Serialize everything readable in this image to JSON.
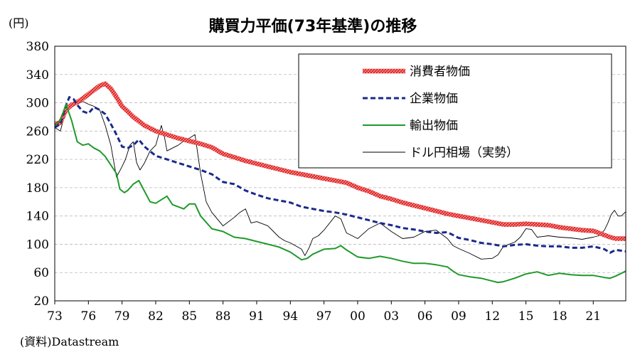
{
  "chart_data": {
    "type": "line",
    "title": "購買力平価(73年基準)の推移",
    "unit_label": "(円)",
    "source": "(資料)Datastream",
    "ylim": [
      20,
      380
    ],
    "yticks": [
      380,
      340,
      300,
      260,
      220,
      180,
      140,
      100,
      60,
      20
    ],
    "xlim": [
      1973,
      2023.9
    ],
    "xticks": [
      {
        "year": 1973,
        "label": "73"
      },
      {
        "year": 1976,
        "label": "76"
      },
      {
        "year": 1979,
        "label": "79"
      },
      {
        "year": 1982,
        "label": "82"
      },
      {
        "year": 1985,
        "label": "85"
      },
      {
        "year": 1988,
        "label": "88"
      },
      {
        "year": 1991,
        "label": "91"
      },
      {
        "year": 1994,
        "label": "94"
      },
      {
        "year": 1997,
        "label": "97"
      },
      {
        "year": 2000,
        "label": "00"
      },
      {
        "year": 2003,
        "label": "03"
      },
      {
        "year": 2006,
        "label": "06"
      },
      {
        "year": 2009,
        "label": "09"
      },
      {
        "year": 2012,
        "label": "12"
      },
      {
        "year": 2015,
        "label": "15"
      },
      {
        "year": 2018,
        "label": "18"
      },
      {
        "year": 2021,
        "label": "21"
      }
    ],
    "grid": "horizontal-dashed",
    "legend_position": "top-right",
    "series": [
      {
        "name": "消費者物価",
        "color": "#e83030",
        "style": "thick-hatched",
        "x": [
          1973.0,
          1973.5,
          1974.0,
          1974.5,
          1975.0,
          1975.5,
          1976.0,
          1976.5,
          1977.0,
          1977.5,
          1978.0,
          1978.5,
          1979.0,
          1979.5,
          1980.0,
          1981.0,
          1982.0,
          1983.0,
          1984.0,
          1985.0,
          1986.0,
          1987.0,
          1988.0,
          1989.0,
          1990.0,
          1991.0,
          1992.0,
          1993.0,
          1994.0,
          1995.0,
          1996.0,
          1997.0,
          1998.0,
          1999.0,
          2000.0,
          2001.0,
          2002.0,
          2003.0,
          2004.0,
          2005.0,
          2006.0,
          2007.0,
          2008.0,
          2009.0,
          2010.0,
          2011.0,
          2012.0,
          2013.0,
          2014.0,
          2015.0,
          2016.0,
          2017.0,
          2018.0,
          2019.0,
          2020.0,
          2021.0,
          2022.0,
          2022.5,
          2023.0,
          2023.9
        ],
        "y": [
          270,
          272,
          290,
          297,
          301,
          306,
          312,
          318,
          324,
          327,
          320,
          308,
          295,
          288,
          280,
          268,
          260,
          255,
          250,
          246,
          242,
          237,
          228,
          223,
          218,
          214,
          210,
          206,
          202,
          199,
          196,
          193,
          190,
          187,
          180,
          175,
          168,
          164,
          159,
          155,
          151,
          147,
          143,
          140,
          137,
          134,
          131,
          128,
          128,
          129,
          128,
          127,
          124,
          122,
          120,
          119,
          113,
          110,
          108,
          108
        ]
      },
      {
        "name": "企業物価",
        "color": "#1a2a8c",
        "style": "dashed",
        "x": [
          1973.0,
          1973.5,
          1974.0,
          1974.3,
          1974.7,
          1975.0,
          1975.5,
          1976.0,
          1976.5,
          1977.0,
          1977.5,
          1978.0,
          1978.5,
          1979.0,
          1979.5,
          1980.0,
          1980.5,
          1981.0,
          1982.0,
          1983.0,
          1984.0,
          1985.0,
          1986.0,
          1987.0,
          1988.0,
          1989.0,
          1990.0,
          1991.0,
          1992.0,
          1993.0,
          1994.0,
          1995.0,
          1996.0,
          1997.0,
          1998.0,
          1999.0,
          2000.0,
          2001.0,
          2002.0,
          2003.0,
          2004.0,
          2005.0,
          2006.0,
          2007.0,
          2008.0,
          2009.0,
          2010.0,
          2011.0,
          2012.0,
          2013.0,
          2014.0,
          2015.0,
          2016.0,
          2017.0,
          2018.0,
          2019.0,
          2020.0,
          2021.0,
          2022.0,
          2022.5,
          2023.0,
          2023.9
        ],
        "y": [
          265,
          270,
          296,
          308,
          305,
          297,
          288,
          285,
          294,
          290,
          284,
          270,
          255,
          238,
          236,
          240,
          248,
          238,
          225,
          220,
          215,
          210,
          205,
          199,
          188,
          185,
          176,
          170,
          165,
          162,
          159,
          153,
          150,
          147,
          145,
          142,
          138,
          134,
          130,
          127,
          123,
          121,
          118,
          116,
          117,
          109,
          106,
          102,
          100,
          97,
          99,
          100,
          98,
          97,
          97,
          95,
          95,
          97,
          93,
          88,
          92,
          90
        ]
      },
      {
        "name": "輸出物価",
        "color": "#1f9a2a",
        "style": "solid",
        "x": [
          1973.0,
          1973.5,
          1974.0,
          1974.5,
          1975.0,
          1975.5,
          1976.0,
          1976.5,
          1977.0,
          1977.5,
          1978.0,
          1978.5,
          1978.8,
          1979.2,
          1979.5,
          1980.0,
          1980.5,
          1981.0,
          1981.5,
          1982.0,
          1982.5,
          1983.0,
          1983.5,
          1984.0,
          1984.5,
          1985.0,
          1985.5,
          1986.0,
          1987.0,
          1988.0,
          1989.0,
          1990.0,
          1991.0,
          1992.0,
          1993.0,
          1994.0,
          1995.0,
          1995.5,
          1996.0,
          1997.0,
          1998.0,
          1998.5,
          1999.0,
          2000.0,
          2001.0,
          2002.0,
          2003.0,
          2004.0,
          2005.0,
          2006.0,
          2007.0,
          2008.0,
          2008.5,
          2009.0,
          2010.0,
          2011.0,
          2012.0,
          2012.5,
          2013.0,
          2014.0,
          2015.0,
          2016.0,
          2017.0,
          2018.0,
          2019.0,
          2020.0,
          2021.0,
          2022.0,
          2022.5,
          2023.0,
          2023.9
        ],
        "y": [
          268,
          275,
          298,
          275,
          245,
          240,
          242,
          236,
          232,
          224,
          212,
          200,
          178,
          173,
          176,
          185,
          190,
          175,
          160,
          158,
          163,
          168,
          156,
          153,
          150,
          157,
          157,
          140,
          122,
          118,
          110,
          108,
          104,
          100,
          96,
          89,
          78,
          80,
          86,
          93,
          94,
          98,
          92,
          82,
          80,
          83,
          80,
          76,
          73,
          73,
          71,
          68,
          62,
          57,
          54,
          52,
          48,
          46,
          47,
          52,
          58,
          61,
          56,
          59,
          57,
          56,
          56,
          53,
          52,
          55,
          62
        ]
      },
      {
        "name": "ドル円相場（実勢）",
        "color": "#000000",
        "style": "thin",
        "x": [
          1973.0,
          1973.5,
          1974.0,
          1974.5,
          1975.0,
          1975.5,
          1976.0,
          1976.5,
          1977.0,
          1977.5,
          1978.0,
          1978.5,
          1979.0,
          1979.3,
          1979.7,
          1980.0,
          1980.3,
          1980.6,
          1981.0,
          1981.5,
          1982.0,
          1982.5,
          1982.8,
          1983.0,
          1983.5,
          1984.0,
          1984.5,
          1985.0,
          1985.5,
          1986.0,
          1986.5,
          1987.0,
          1988.0,
          1989.0,
          1989.5,
          1990.0,
          1990.5,
          1991.0,
          1992.0,
          1993.0,
          1993.5,
          1994.0,
          1995.0,
          1995.3,
          1995.7,
          1996.0,
          1996.5,
          1997.0,
          1998.0,
          1998.5,
          1999.0,
          2000.0,
          2001.0,
          2002.0,
          2003.0,
          2004.0,
          2005.0,
          2006.0,
          2007.0,
          2008.0,
          2008.5,
          2009.0,
          2010.0,
          2011.0,
          2012.0,
          2012.5,
          2013.0,
          2013.5,
          2014.0,
          2014.5,
          2015.0,
          2015.5,
          2016.0,
          2017.0,
          2018.0,
          2019.0,
          2020.0,
          2021.0,
          2021.5,
          2022.0,
          2022.3,
          2022.6,
          2022.9,
          2023.2,
          2023.5,
          2023.9
        ],
        "y": [
          265,
          260,
          290,
          300,
          298,
          302,
          298,
          295,
          290,
          268,
          240,
          195,
          210,
          220,
          240,
          245,
          215,
          205,
          215,
          232,
          240,
          268,
          250,
          232,
          236,
          240,
          246,
          250,
          255,
          200,
          160,
          145,
          126,
          138,
          145,
          150,
          130,
          132,
          126,
          110,
          105,
          102,
          93,
          84,
          96,
          108,
          112,
          120,
          140,
          136,
          116,
          108,
          122,
          130,
          118,
          108,
          110,
          118,
          120,
          108,
          98,
          94,
          87,
          79,
          80,
          85,
          97,
          100,
          103,
          110,
          122,
          121,
          110,
          112,
          110,
          109,
          107,
          110,
          112,
          120,
          130,
          142,
          148,
          140,
          140,
          146
        ]
      }
    ]
  }
}
